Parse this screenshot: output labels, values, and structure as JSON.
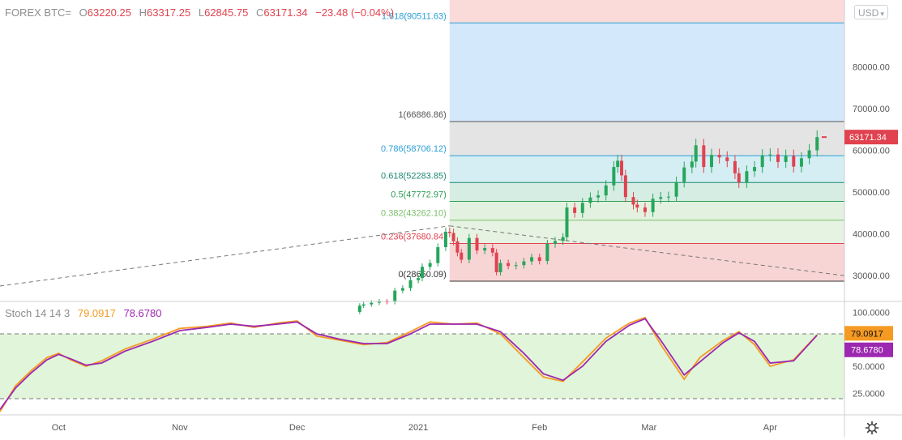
{
  "header": {
    "symbol": "FOREX BTC=",
    "open_label": "O",
    "open": "63220.25",
    "high_label": "H",
    "high": "63317.25",
    "low_label": "L",
    "low": "62845.75",
    "close_label": "C",
    "close": "63171.34",
    "change": "−23.48 (−0.04%)"
  },
  "currency_button": "USD",
  "last_price_tag": "63171.34",
  "stoch": {
    "name": "Stoch 14 14 3",
    "k_value": "79.0917",
    "d_value": "78.6780",
    "k_color": "#f59a23",
    "d_color": "#9c27b0"
  },
  "colors": {
    "up": "#26a65b",
    "down": "#e0424f",
    "fib_line": "#2a9fd6"
  },
  "chart_data": [
    {
      "type": "candlestick",
      "title": "",
      "ylim": [
        24000,
        96000
      ],
      "y_ticks": [
        "30000.00",
        "40000.00",
        "50000.00",
        "60000.00",
        "70000.00",
        "80000.00"
      ],
      "y_tick_values": [
        30000,
        40000,
        50000,
        60000,
        70000,
        80000
      ],
      "x_ticks": [
        "Oct",
        "Nov",
        "Dec",
        "2021",
        "Feb",
        "Mar",
        "Apr"
      ],
      "x_tick_dates": [
        "2020-10-01",
        "2020-11-01",
        "2020-12-01",
        "2021-01-01",
        "2021-02-01",
        "2021-03-01",
        "2021-04-01"
      ],
      "x_range": [
        "2020-09-16",
        "2021-04-20"
      ],
      "close_series": [
        {
          "date": "2020-12-16",
          "close": 21300
        },
        {
          "date": "2020-12-17",
          "close": 22800
        },
        {
          "date": "2020-12-18",
          "close": 23100
        },
        {
          "date": "2020-12-20",
          "close": 23500
        },
        {
          "date": "2020-12-22",
          "close": 23800
        },
        {
          "date": "2020-12-24",
          "close": 23700
        },
        {
          "date": "2020-12-26",
          "close": 26400
        },
        {
          "date": "2020-12-28",
          "close": 27000
        },
        {
          "date": "2020-12-30",
          "close": 28900
        },
        {
          "date": "2021-01-01",
          "close": 29400
        },
        {
          "date": "2021-01-02",
          "close": 32100
        },
        {
          "date": "2021-01-04",
          "close": 33000
        },
        {
          "date": "2021-01-06",
          "close": 36800
        },
        {
          "date": "2021-01-08",
          "close": 40500
        },
        {
          "date": "2021-01-09",
          "close": 40200
        },
        {
          "date": "2021-01-10",
          "close": 38200
        },
        {
          "date": "2021-01-11",
          "close": 35500
        },
        {
          "date": "2021-01-12",
          "close": 33800
        },
        {
          "date": "2021-01-14",
          "close": 39000
        },
        {
          "date": "2021-01-16",
          "close": 36000
        },
        {
          "date": "2021-01-18",
          "close": 36600
        },
        {
          "date": "2021-01-20",
          "close": 35500
        },
        {
          "date": "2021-01-21",
          "close": 30800
        },
        {
          "date": "2021-01-22",
          "close": 33000
        },
        {
          "date": "2021-01-24",
          "close": 32300
        },
        {
          "date": "2021-01-26",
          "close": 32500
        },
        {
          "date": "2021-01-28",
          "close": 33400
        },
        {
          "date": "2021-01-30",
          "close": 34400
        },
        {
          "date": "2021-02-01",
          "close": 33500
        },
        {
          "date": "2021-02-03",
          "close": 37600
        },
        {
          "date": "2021-02-05",
          "close": 38300
        },
        {
          "date": "2021-02-07",
          "close": 39200
        },
        {
          "date": "2021-02-08",
          "close": 46300
        },
        {
          "date": "2021-02-10",
          "close": 45000
        },
        {
          "date": "2021-02-12",
          "close": 47400
        },
        {
          "date": "2021-02-14",
          "close": 48700
        },
        {
          "date": "2021-02-16",
          "close": 49200
        },
        {
          "date": "2021-02-18",
          "close": 51600
        },
        {
          "date": "2021-02-20",
          "close": 56000
        },
        {
          "date": "2021-02-21",
          "close": 57500
        },
        {
          "date": "2021-02-22",
          "close": 54000
        },
        {
          "date": "2021-02-23",
          "close": 48800
        },
        {
          "date": "2021-02-25",
          "close": 47000
        },
        {
          "date": "2021-02-26",
          "close": 46300
        },
        {
          "date": "2021-02-28",
          "close": 45200
        },
        {
          "date": "2021-03-02",
          "close": 48400
        },
        {
          "date": "2021-03-04",
          "close": 48800
        },
        {
          "date": "2021-03-06",
          "close": 48900
        },
        {
          "date": "2021-03-08",
          "close": 52400
        },
        {
          "date": "2021-03-10",
          "close": 55900
        },
        {
          "date": "2021-03-12",
          "close": 57300
        },
        {
          "date": "2021-03-13",
          "close": 61200
        },
        {
          "date": "2021-03-15",
          "close": 56000
        },
        {
          "date": "2021-03-17",
          "close": 58900
        },
        {
          "date": "2021-03-19",
          "close": 58300
        },
        {
          "date": "2021-03-21",
          "close": 57400
        },
        {
          "date": "2021-03-23",
          "close": 54500
        },
        {
          "date": "2021-03-24",
          "close": 52300
        },
        {
          "date": "2021-03-26",
          "close": 55000
        },
        {
          "date": "2021-03-28",
          "close": 56000
        },
        {
          "date": "2021-03-30",
          "close": 58800
        },
        {
          "date": "2021-04-01",
          "close": 59000
        },
        {
          "date": "2021-04-03",
          "close": 57200
        },
        {
          "date": "2021-04-05",
          "close": 58700
        },
        {
          "date": "2021-04-07",
          "close": 56100
        },
        {
          "date": "2021-04-09",
          "close": 58100
        },
        {
          "date": "2021-04-11",
          "close": 60000
        },
        {
          "date": "2021-04-13",
          "close": 63171
        }
      ],
      "fib_levels": [
        {
          "label": "0(28650.09)",
          "value": 28650.09,
          "fill": "#f8d5d5"
        },
        {
          "label": "0.236(37680.84)",
          "value": 37680.84,
          "fill": "#e6f2e2"
        },
        {
          "label": "0.382(43262.10)",
          "value": 43262.1,
          "fill": "#e3f2e0"
        },
        {
          "label": "0.5(47772.97)",
          "value": 47772.97,
          "fill": "#d6ede4"
        },
        {
          "label": "0.618(52283.85)",
          "value": 52283.85,
          "fill": "#d5eef3"
        },
        {
          "label": "0.786(58706.12)",
          "value": 58706.12,
          "fill": "#e4e4e4"
        },
        {
          "label": "1(66886.86)",
          "value": 66886.86,
          "fill": "#d4e8fb"
        },
        {
          "label": "1.618(90511.63)",
          "value": 90511.63,
          "fill": "#fbdada"
        }
      ],
      "fib_label_colors": [
        "#333333",
        "#e0424f",
        "#7cbf6a",
        "#2e9e54",
        "#1e8a6e",
        "#2a9fd6",
        "#555555",
        "#2a9fd6"
      ],
      "fib_range": [
        "2021-01-09",
        "2021-04-20"
      ],
      "trend_lines": [
        {
          "from": [
            "2020-09-16",
            27500
          ],
          "to": [
            "2021-01-09",
            41900
          ]
        },
        {
          "from": [
            "2021-01-09",
            41900
          ],
          "to": [
            "2021-04-20",
            30000
          ]
        }
      ]
    },
    {
      "type": "line",
      "title": "Stoch 14 14 3",
      "ylim": [
        5,
        110
      ],
      "y_ticks": [
        "25.0000",
        "50.0000",
        "100.0000"
      ],
      "y_tick_values": [
        25,
        50,
        100
      ],
      "bands": [
        20,
        80
      ],
      "band_fill": "#e0f5d9",
      "series": [
        {
          "name": "%K",
          "color": "#f59a23",
          "points": [
            [
              "2020-09-16",
              8
            ],
            [
              "2020-09-20",
              32
            ],
            [
              "2020-09-24",
              46
            ],
            [
              "2020-09-28",
              58
            ],
            [
              "2020-10-01",
              62
            ],
            [
              "2020-10-04",
              56
            ],
            [
              "2020-10-08",
              50
            ],
            [
              "2020-10-12",
              55
            ],
            [
              "2020-10-18",
              66
            ],
            [
              "2020-10-25",
              75
            ],
            [
              "2020-11-01",
              85
            ],
            [
              "2020-11-08",
              87
            ],
            [
              "2020-11-14",
              90
            ],
            [
              "2020-11-20",
              86
            ],
            [
              "2020-11-26",
              90
            ],
            [
              "2020-12-01",
              92
            ],
            [
              "2020-12-06",
              78
            ],
            [
              "2020-12-12",
              74
            ],
            [
              "2020-12-18",
              70
            ],
            [
              "2020-12-24",
              72
            ],
            [
              "2020-12-30",
              82
            ],
            [
              "2021-01-04",
              91
            ],
            [
              "2021-01-10",
              89
            ],
            [
              "2021-01-16",
              90
            ],
            [
              "2021-01-22",
              80
            ],
            [
              "2021-01-28",
              58
            ],
            [
              "2021-02-02",
              40
            ],
            [
              "2021-02-07",
              36
            ],
            [
              "2021-02-12",
              54
            ],
            [
              "2021-02-18",
              76
            ],
            [
              "2021-02-24",
              90
            ],
            [
              "2021-02-28",
              95
            ],
            [
              "2021-03-04",
              70
            ],
            [
              "2021-03-10",
              38
            ],
            [
              "2021-03-14",
              58
            ],
            [
              "2021-03-20",
              74
            ],
            [
              "2021-03-24",
              82
            ],
            [
              "2021-03-28",
              70
            ],
            [
              "2021-04-01",
              50
            ],
            [
              "2021-04-07",
              56
            ],
            [
              "2021-04-13",
              79
            ]
          ]
        },
        {
          "name": "%D",
          "color": "#9c27b0",
          "points": [
            [
              "2020-09-16",
              10
            ],
            [
              "2020-09-20",
              30
            ],
            [
              "2020-09-24",
              44
            ],
            [
              "2020-09-28",
              56
            ],
            [
              "2020-10-01",
              61
            ],
            [
              "2020-10-04",
              57
            ],
            [
              "2020-10-08",
              51
            ],
            [
              "2020-10-12",
              53
            ],
            [
              "2020-10-18",
              64
            ],
            [
              "2020-10-25",
              73
            ],
            [
              "2020-11-01",
              83
            ],
            [
              "2020-11-08",
              86
            ],
            [
              "2020-11-14",
              89
            ],
            [
              "2020-11-20",
              87
            ],
            [
              "2020-11-26",
              89
            ],
            [
              "2020-12-01",
              91
            ],
            [
              "2020-12-06",
              80
            ],
            [
              "2020-12-12",
              75
            ],
            [
              "2020-12-18",
              71
            ],
            [
              "2020-12-24",
              71
            ],
            [
              "2020-12-30",
              80
            ],
            [
              "2021-01-04",
              89
            ],
            [
              "2021-01-10",
              89
            ],
            [
              "2021-01-16",
              89
            ],
            [
              "2021-01-22",
              82
            ],
            [
              "2021-01-28",
              62
            ],
            [
              "2021-02-02",
              43
            ],
            [
              "2021-02-07",
              37
            ],
            [
              "2021-02-12",
              50
            ],
            [
              "2021-02-18",
              73
            ],
            [
              "2021-02-24",
              88
            ],
            [
              "2021-02-28",
              94
            ],
            [
              "2021-03-04",
              74
            ],
            [
              "2021-03-10",
              42
            ],
            [
              "2021-03-14",
              54
            ],
            [
              "2021-03-20",
              72
            ],
            [
              "2021-03-24",
              81
            ],
            [
              "2021-03-28",
              73
            ],
            [
              "2021-04-01",
              53
            ],
            [
              "2021-04-07",
              55
            ],
            [
              "2021-04-13",
              78.7
            ]
          ]
        }
      ]
    }
  ]
}
